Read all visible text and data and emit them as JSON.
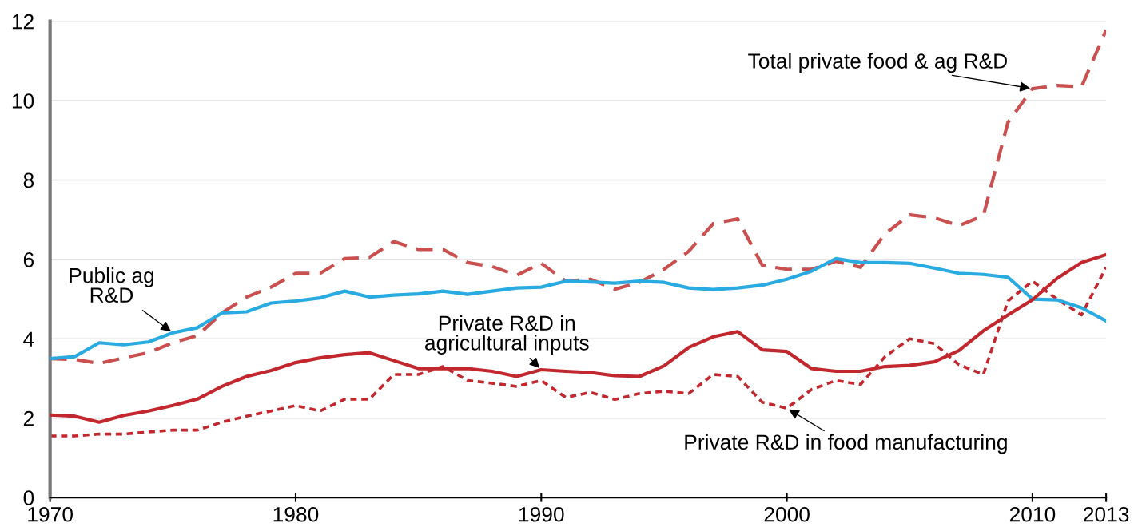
{
  "chart_data": {
    "type": "line",
    "x": [
      1970,
      1971,
      1972,
      1973,
      1974,
      1975,
      1976,
      1977,
      1978,
      1979,
      1980,
      1981,
      1982,
      1983,
      1984,
      1985,
      1986,
      1987,
      1988,
      1989,
      1990,
      1991,
      1992,
      1993,
      1994,
      1995,
      1996,
      1997,
      1998,
      1999,
      2000,
      2001,
      2002,
      2003,
      2004,
      2005,
      2006,
      2007,
      2008,
      2009,
      2010,
      2011,
      2012,
      2013
    ],
    "series": [
      {
        "name": "Total private food & ag R&D",
        "color": "#c9504f",
        "line_style": "dashed",
        "values": [
          3.5,
          3.48,
          3.38,
          3.52,
          3.65,
          3.9,
          4.08,
          4.65,
          5.05,
          5.3,
          5.65,
          5.65,
          6.02,
          6.05,
          6.45,
          6.25,
          6.25,
          5.92,
          5.82,
          5.6,
          5.9,
          5.45,
          5.5,
          5.25,
          5.42,
          5.75,
          6.2,
          6.9,
          7.02,
          5.85,
          5.75,
          5.75,
          5.95,
          5.8,
          6.65,
          7.12,
          7.05,
          6.85,
          7.1,
          9.45,
          10.3,
          10.38,
          10.35,
          11.78
        ]
      },
      {
        "name": "Public ag R&D",
        "color": "#29abe2",
        "line_style": "solid",
        "values": [
          3.5,
          3.55,
          3.9,
          3.85,
          3.92,
          4.15,
          4.28,
          4.65,
          4.68,
          4.9,
          4.95,
          5.03,
          5.2,
          5.05,
          5.1,
          5.13,
          5.2,
          5.12,
          5.2,
          5.28,
          5.3,
          5.45,
          5.43,
          5.4,
          5.45,
          5.42,
          5.28,
          5.24,
          5.28,
          5.35,
          5.5,
          5.7,
          6.02,
          5.92,
          5.92,
          5.9,
          5.78,
          5.65,
          5.62,
          5.55,
          5.0,
          4.98,
          4.78,
          4.45
        ]
      },
      {
        "name": "Private R&D in agricultural inputs",
        "color": "#c1272d",
        "line_style": "solid",
        "values": [
          2.08,
          2.05,
          1.9,
          2.07,
          2.18,
          2.32,
          2.48,
          2.8,
          3.05,
          3.2,
          3.4,
          3.52,
          3.6,
          3.65,
          3.45,
          3.25,
          3.25,
          3.25,
          3.18,
          3.05,
          3.22,
          3.18,
          3.15,
          3.07,
          3.05,
          3.32,
          3.78,
          4.05,
          4.18,
          3.72,
          3.68,
          3.25,
          3.18,
          3.18,
          3.3,
          3.33,
          3.42,
          3.7,
          4.2,
          4.6,
          4.98,
          5.52,
          5.92,
          6.12
        ]
      },
      {
        "name": "Private R&D in food manufacturing",
        "color": "#c1272d",
        "line_style": "dotted",
        "values": [
          1.55,
          1.55,
          1.6,
          1.6,
          1.65,
          1.7,
          1.7,
          1.9,
          2.05,
          2.18,
          2.32,
          2.18,
          2.48,
          2.48,
          3.1,
          3.1,
          3.3,
          2.95,
          2.88,
          2.8,
          2.95,
          2.52,
          2.65,
          2.47,
          2.62,
          2.68,
          2.62,
          3.1,
          3.05,
          2.4,
          2.25,
          2.72,
          2.95,
          2.85,
          3.55,
          4.0,
          3.88,
          3.35,
          3.1,
          4.95,
          5.45,
          5.0,
          4.6,
          5.8
        ]
      }
    ],
    "xlim": [
      1970,
      2013
    ],
    "xticks": [
      1970,
      1980,
      1990,
      2000,
      2010,
      2013
    ],
    "ylim": [
      0,
      12
    ],
    "yticks": [
      0,
      2,
      4,
      6,
      8,
      10,
      12
    ],
    "grid": "y",
    "legend": false
  }
}
